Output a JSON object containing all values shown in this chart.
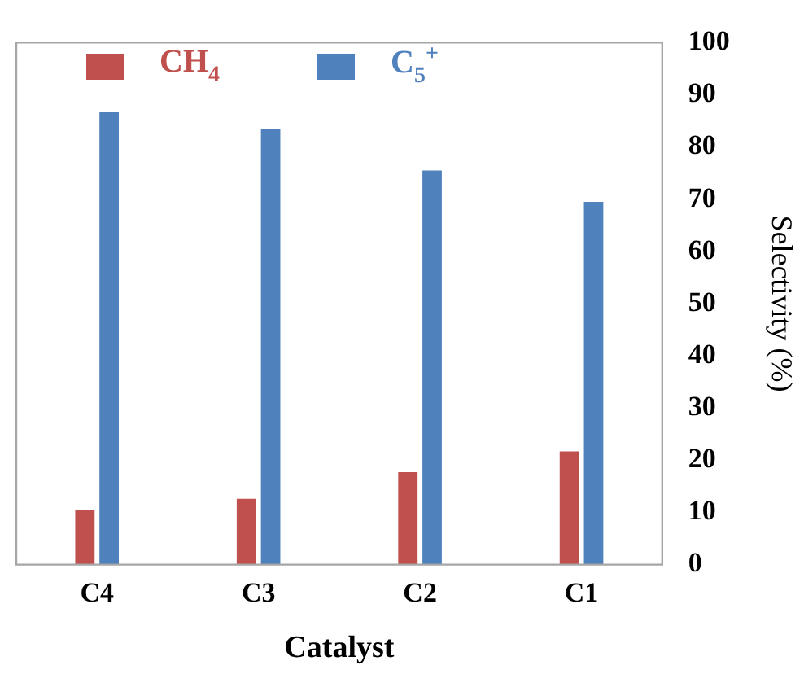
{
  "chart_data": {
    "type": "bar",
    "xlabel": "Catalyst",
    "ylabel": "Selectivity (%)",
    "categories": [
      "C4",
      "C3",
      "C2",
      "C1"
    ],
    "series": [
      {
        "name": "CH$_{4}$",
        "color": "#c0504d",
        "values": [
          10.5,
          12.6,
          17.7,
          21.7
        ]
      },
      {
        "name": "C$_{5}$$^{+}$",
        "color": "#4f81bd",
        "values": [
          86.8,
          83.4,
          75.5,
          69.5
        ]
      }
    ],
    "ylim": [
      0,
      100
    ],
    "yticks": [
      0,
      10,
      20,
      30,
      40,
      50,
      60,
      70,
      80,
      90,
      100
    ],
    "grid": false,
    "legend": "top left"
  }
}
